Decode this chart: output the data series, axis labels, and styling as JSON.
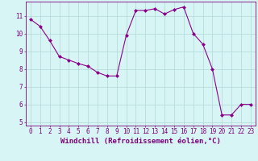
{
  "x": [
    0,
    1,
    2,
    3,
    4,
    5,
    6,
    7,
    8,
    9,
    10,
    11,
    12,
    13,
    14,
    15,
    16,
    17,
    18,
    19,
    20,
    21,
    22,
    23
  ],
  "y": [
    10.8,
    10.4,
    9.6,
    8.7,
    8.5,
    8.3,
    8.15,
    7.8,
    7.6,
    7.6,
    9.9,
    11.3,
    11.3,
    11.4,
    11.1,
    11.35,
    11.5,
    10.0,
    9.4,
    8.0,
    5.4,
    5.4,
    6.0,
    6.0
  ],
  "line_color": "#8B008B",
  "marker": "D",
  "marker_size": 2,
  "bg_color": "#d8f5f5",
  "grid_color": "#b0d8d8",
  "xlabel": "Windchill (Refroidissement éolien,°C)",
  "ylabel": "",
  "ylim": [
    4.8,
    11.8
  ],
  "xlim": [
    -0.5,
    23.5
  ],
  "yticks": [
    5,
    6,
    7,
    8,
    9,
    10,
    11
  ],
  "xticks": [
    0,
    1,
    2,
    3,
    4,
    5,
    6,
    7,
    8,
    9,
    10,
    11,
    12,
    13,
    14,
    15,
    16,
    17,
    18,
    19,
    20,
    21,
    22,
    23
  ],
  "xtick_labels": [
    "0",
    "1",
    "2",
    "3",
    "4",
    "5",
    "6",
    "7",
    "8",
    "9",
    "10",
    "11",
    "12",
    "13",
    "14",
    "15",
    "16",
    "17",
    "18",
    "19",
    "20",
    "21",
    "22",
    "23"
  ],
  "axis_color": "#7b007b",
  "tick_color": "#7b007b",
  "label_color": "#7b007b",
  "label_fontsize": 6.5,
  "tick_fontsize": 5.5
}
